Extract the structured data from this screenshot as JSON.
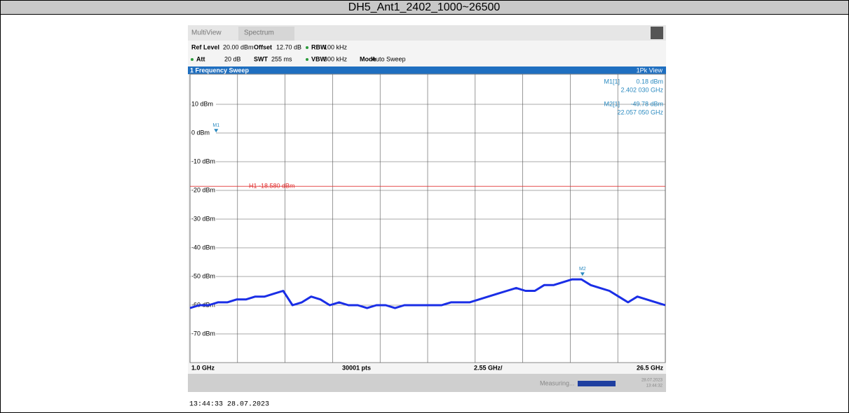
{
  "header": {
    "title": "DH5_Ant1_2402_1000~26500"
  },
  "timestamp": "13:44:33  28.07.2023",
  "screen": {
    "tabs": [
      "MultiView",
      "Spectrum"
    ],
    "settings": [
      "Ref Level",
      "20.00 dBm",
      "Offset",
      "12.70 dB",
      "RBW",
      "100 kHz",
      "Att",
      "20 dB",
      "SWT",
      "255 ms",
      "VBW",
      "300 kHz",
      "Mode",
      "Auto Sweep"
    ],
    "window_title": "1 Frequency Sweep",
    "view": "1Pk View",
    "footer": [
      "1.0 GHz",
      "30001 pts",
      "2.55 GHz/",
      "26.5 GHz"
    ],
    "status": "Measuring...",
    "date": "28.07.2023",
    "time": "13:44:32"
  },
  "chart_data": {
    "type": "line",
    "x": [
      1,
      1.5,
      2,
      2.5,
      3,
      3.5,
      4,
      4.5,
      5,
      5.5,
      6,
      6.5,
      7,
      7.5,
      8,
      8.5,
      9,
      9.5,
      10,
      10.5,
      11,
      11.5,
      12,
      12.5,
      13,
      13.5,
      14,
      14.5,
      15,
      15.5,
      16,
      16.5,
      17,
      17.5,
      18,
      18.5,
      19,
      19.5,
      20,
      20.5,
      21,
      21.5,
      22,
      22.5,
      23,
      23.5,
      24,
      24.5,
      25,
      25.5,
      26,
      26.5
    ],
    "series": [
      {
        "color": "#1a2ee6",
        "values": [
          -61,
          -60,
          -60,
          -59,
          -59,
          -58,
          -58,
          -57,
          -57,
          -56,
          -55,
          -60,
          -59,
          -57,
          -58,
          -60,
          -59,
          -60,
          -60,
          -61,
          -60,
          -60,
          -61,
          -60,
          -60,
          -60,
          -60,
          -60,
          -59,
          -59,
          -59,
          -58,
          -57,
          -56,
          -55,
          -54,
          -55,
          -55,
          -53,
          -53,
          -52,
          -51,
          -51,
          -53,
          -54,
          -55,
          -57,
          -59,
          -57,
          -58,
          -59,
          -60
        ]
      }
    ],
    "xlim": [
      1,
      26.5
    ],
    "ylim": [
      -80,
      20
    ],
    "xticks": [
      1,
      3.55,
      6.1,
      8.65,
      11.2,
      13.75,
      16.3,
      18.85,
      21.4,
      23.95,
      26.5
    ],
    "yticks": [
      {
        "value": 10,
        "label": "10 dBm"
      },
      {
        "value": 0,
        "label": "0 dBm"
      },
      {
        "value": -10,
        "label": "-10 dBm"
      },
      {
        "value": -20,
        "label": "-20 dBm"
      },
      {
        "value": -30,
        "label": "-30 dBm"
      },
      {
        "value": -40,
        "label": "-40 dBm"
      },
      {
        "value": -50,
        "label": "-50 dBm"
      },
      {
        "value": -60,
        "label": "-60 dBm"
      },
      {
        "value": -70,
        "label": "-70 dBm"
      }
    ],
    "grid": true,
    "hline": {
      "label": "H1 -18.580 dBm",
      "value": -18.58,
      "color": "#e03030"
    },
    "markers": [
      {
        "label": "M1",
        "table_label": "M1[1]",
        "value_label": "0.18 dBm",
        "freq_label": "2.402 030 GHz",
        "x": 2.40203,
        "y": 0.18
      },
      {
        "label": "M2",
        "table_label": "M2[1]",
        "value_label": "-49.78 dBm",
        "freq_label": "22.057 050 GHz",
        "x": 22.05705,
        "y": -49.78
      }
    ]
  }
}
